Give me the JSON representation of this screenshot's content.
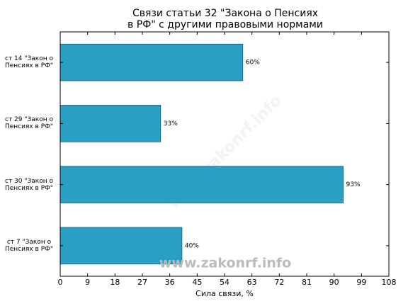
{
  "chart_data": {
    "type": "bar",
    "orientation": "horizontal",
    "title": "Связи статьи 32 \"Закона о Пенсиях в РФ\" с другими правовыми нормами",
    "categories": [
      "ст 14 \"Закон о Пенсиях в РФ\"",
      "ст 29 \"Закон о Пенсиях в РФ\"",
      "ст 30 \"Закон о Пенсиях в РФ\"",
      "ст 7 \"Закон о Пенсиях в РФ\""
    ],
    "values": [
      60,
      33,
      93,
      40
    ],
    "value_labels": [
      "60%",
      "33%",
      "93%",
      "40%"
    ],
    "color": "#2a9fc4",
    "xlabel": "Сила связи, %",
    "xlim": [
      0,
      108
    ],
    "xticks": [
      0,
      9,
      18,
      27,
      36,
      45,
      54,
      63,
      72,
      81,
      90,
      99,
      108
    ],
    "watermark": "www.zakonrf.info"
  }
}
